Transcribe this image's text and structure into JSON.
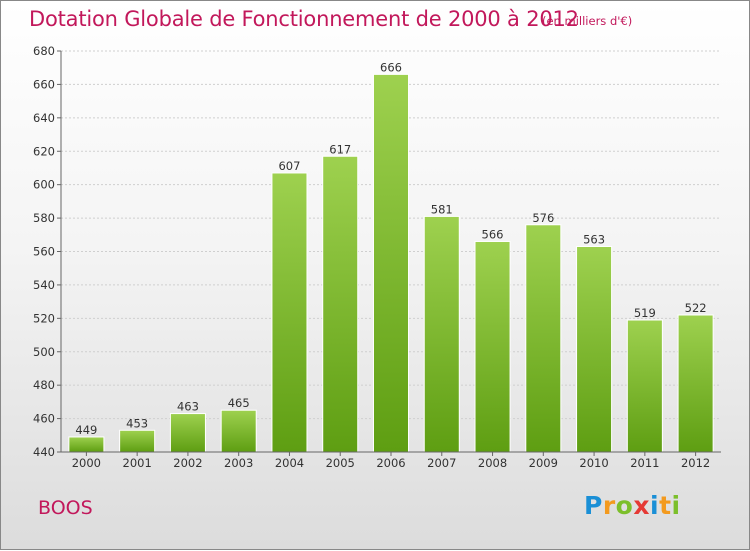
{
  "chart_data": {
    "type": "bar",
    "title": "Dotation Globale de Fonctionnement de 2000 à 2012",
    "subtitle": "(en milliers d'€)",
    "categories": [
      "2000",
      "2001",
      "2002",
      "2003",
      "2004",
      "2005",
      "2006",
      "2007",
      "2008",
      "2009",
      "2010",
      "2011",
      "2012"
    ],
    "values": [
      449,
      453,
      463,
      465,
      607,
      617,
      666,
      581,
      566,
      576,
      563,
      519,
      522
    ],
    "ylim": [
      440,
      680
    ],
    "yticks": [
      440,
      460,
      480,
      500,
      520,
      540,
      560,
      580,
      600,
      620,
      640,
      660,
      680
    ],
    "grid": true,
    "bar_color_top": "#9ed14f",
    "bar_color_bottom": "#5e9e12"
  },
  "commune": "BOOS",
  "logo": {
    "text": "Proxiti",
    "letters": [
      {
        "ch": "P",
        "color": "#1a8fd6"
      },
      {
        "ch": "r",
        "color": "#f39a1e"
      },
      {
        "ch": "o",
        "color": "#7cbf2b"
      },
      {
        "ch": "x",
        "color": "#e53935"
      },
      {
        "ch": "i",
        "color": "#1a8fd6"
      },
      {
        "ch": "t",
        "color": "#f39a1e"
      },
      {
        "ch": "i",
        "color": "#7cbf2b"
      }
    ]
  }
}
